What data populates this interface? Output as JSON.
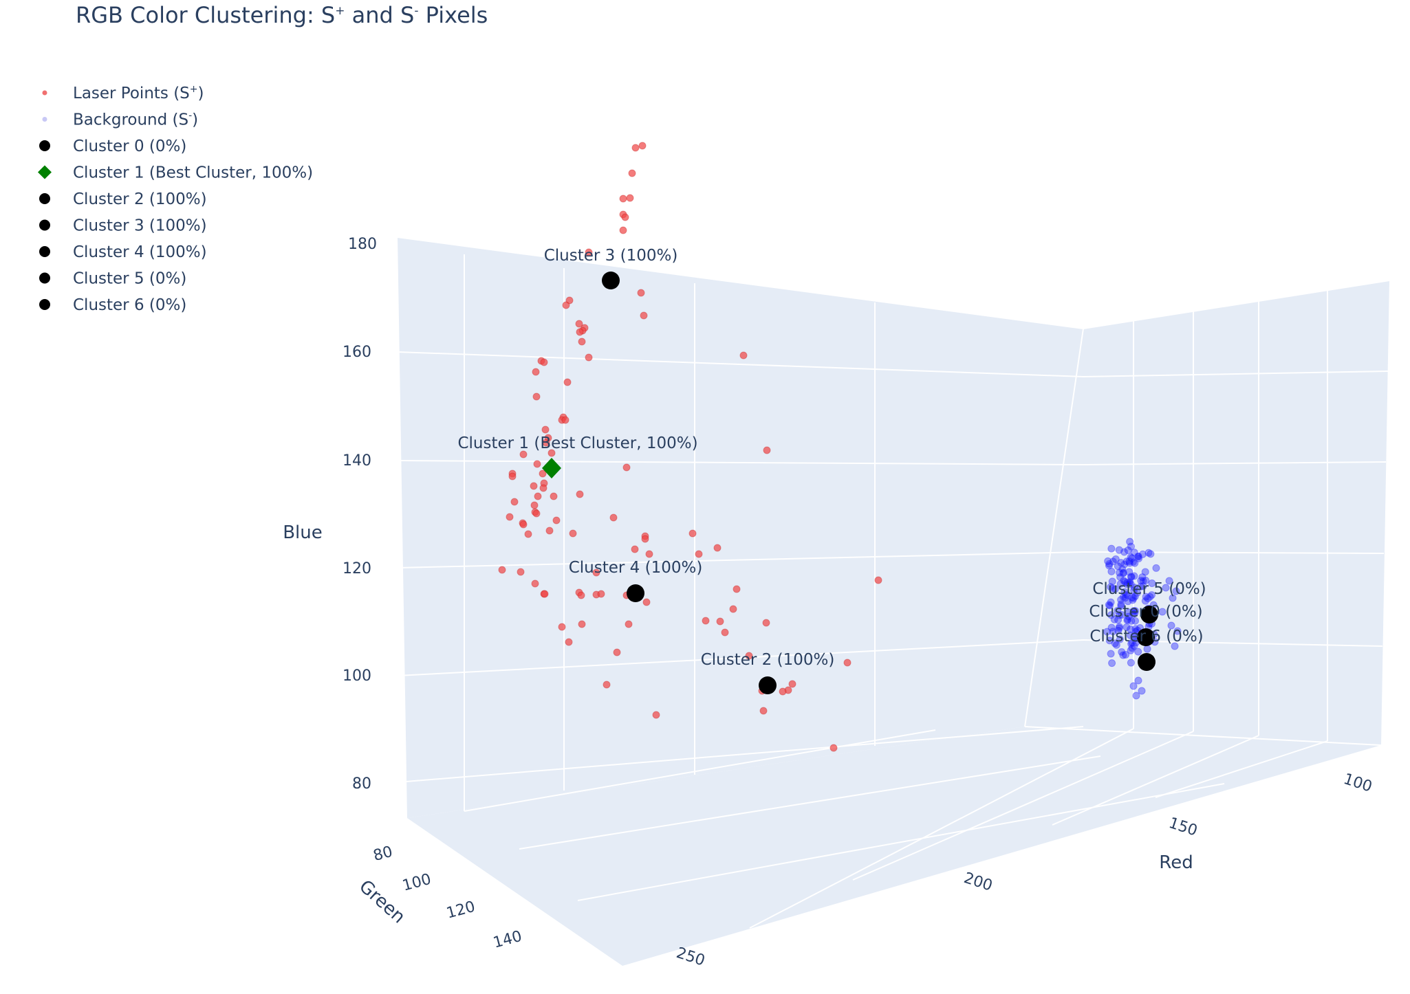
{
  "chart_data": {
    "type": "scatter",
    "title_parts": [
      "RGB Color Clustering: S",
      "+",
      " and S",
      "-",
      " Pixels"
    ],
    "axes": {
      "x": {
        "title": "Red",
        "ticks": [
          "100",
          "150",
          "200",
          "250"
        ]
      },
      "y": {
        "title": "Green",
        "ticks": [
          "80",
          "100",
          "120",
          "140"
        ]
      },
      "z": {
        "title": "Blue",
        "ticks": [
          "80",
          "100",
          "120",
          "140",
          "160",
          "180"
        ]
      }
    },
    "colors": {
      "laser": "#ef4444",
      "background": "#0000ff",
      "cluster": "#000000",
      "best_cluster": "#008000",
      "pane": "#e5ecf6"
    },
    "legend": [
      {
        "label": "Laser Points (S",
        "sup": "+",
        "end": ")",
        "marker": "small-dot",
        "color": "#f07070"
      },
      {
        "label": "Background (S",
        "sup": "-",
        "end": ")",
        "marker": "small-dot",
        "color": "#c8c8f5"
      },
      {
        "label": "Cluster 0 (0%)",
        "sup": "",
        "end": "",
        "marker": "dot",
        "color": "#000000"
      },
      {
        "label": "Cluster 1 (Best Cluster, 100%)",
        "sup": "",
        "end": "",
        "marker": "diamond",
        "color": "#008000"
      },
      {
        "label": "Cluster 2 (100%)",
        "sup": "",
        "end": "",
        "marker": "dot",
        "color": "#000000"
      },
      {
        "label": "Cluster 3 (100%)",
        "sup": "",
        "end": "",
        "marker": "dot",
        "color": "#000000"
      },
      {
        "label": "Cluster 4 (100%)",
        "sup": "",
        "end": "",
        "marker": "dot",
        "color": "#000000"
      },
      {
        "label": "Cluster 5 (0%)",
        "sup": "",
        "end": "",
        "marker": "dot",
        "color": "#000000"
      },
      {
        "label": "Cluster 6 (0%)",
        "sup": "",
        "end": "",
        "marker": "dot",
        "color": "#000000"
      }
    ],
    "cluster_annotations": [
      {
        "text": "Cluster 3 (100%)"
      },
      {
        "text": "Cluster 1 (Best Cluster, 100%)"
      },
      {
        "text": "Cluster 4 (100%)"
      },
      {
        "text": "Cluster 2 (100%)"
      },
      {
        "text": "Cluster 5 (0%)"
      },
      {
        "text": "Cluster 0 (0%)"
      },
      {
        "text": "Cluster 6 (0%)"
      }
    ]
  }
}
